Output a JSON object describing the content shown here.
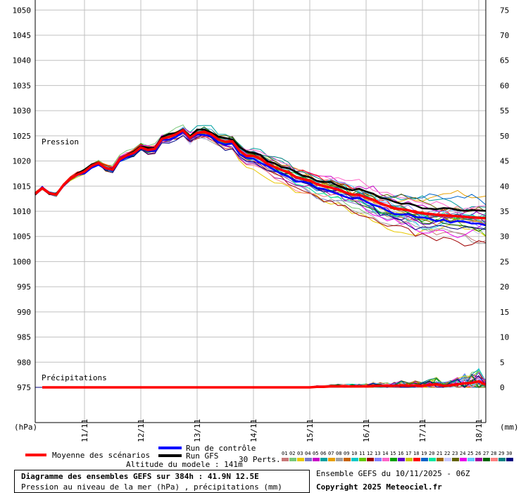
{
  "chart_data": {
    "type": "line",
    "title": "Diagramme des ensembles GEFS sur 384h : 41.9N 12.5E",
    "subtitle": "Pression au niveau de la mer (hPa) , précipitations (mm)",
    "left_axis": {
      "unit": "(hPa)",
      "ticks": [
        1050,
        1045,
        1040,
        1035,
        1030,
        1025,
        1020,
        1015,
        1010,
        1005,
        1000,
        995,
        990,
        985,
        980,
        975
      ],
      "range": [
        968,
        1052
      ]
    },
    "right_axis": {
      "unit": "(mm)",
      "ticks": [
        75,
        70,
        65,
        60,
        55,
        50,
        45,
        40,
        35,
        30,
        25,
        20,
        15,
        10,
        5,
        0
      ]
    },
    "x_ticks": [
      "11/11",
      "12/11",
      "13/11",
      "14/11",
      "15/11",
      "16/11",
      "17/11",
      "18/11"
    ],
    "x_range_hours": [
      0,
      384
    ],
    "x_tick_hours": [
      42,
      90,
      138,
      186,
      234,
      282,
      330,
      378
    ],
    "label_pressure": "Pression",
    "label_precip": "Précipitations",
    "pressure_mean": {
      "name": "Moyenne des scénarios",
      "x_hours": [
        0,
        6,
        12,
        18,
        24,
        30,
        36,
        42,
        48,
        54,
        60,
        66,
        72,
        78,
        84,
        90,
        96,
        102,
        108,
        114,
        120,
        126,
        132,
        138,
        144,
        150,
        156,
        162,
        168,
        174,
        180,
        186,
        192,
        198,
        204,
        210,
        216,
        222,
        228,
        234,
        240,
        246,
        252,
        258,
        264,
        270,
        276,
        282,
        288,
        294,
        300,
        306,
        312,
        318,
        324,
        330,
        336,
        342,
        348,
        354,
        360,
        366,
        372,
        378,
        384
      ],
      "values": [
        1013.5,
        1014.6,
        1013.6,
        1013.3,
        1015.2,
        1016.5,
        1017.3,
        1017.9,
        1019.0,
        1019.6,
        1018.6,
        1018.3,
        1020.3,
        1021.1,
        1021.6,
        1022.7,
        1022.2,
        1022.4,
        1024.4,
        1024.8,
        1025.3,
        1026.1,
        1024.6,
        1025.6,
        1025.8,
        1025.3,
        1024.3,
        1023.8,
        1023.9,
        1022.1,
        1021.0,
        1021.0,
        1020.4,
        1019.4,
        1018.8,
        1018.2,
        1017.7,
        1016.8,
        1016.4,
        1016.1,
        1015.4,
        1015.0,
        1014.7,
        1014.3,
        1013.8,
        1013.3,
        1013.3,
        1012.7,
        1012.3,
        1011.6,
        1011.1,
        1010.6,
        1010.4,
        1010.2,
        1009.8,
        1009.6,
        1009.5,
        1009.3,
        1009.2,
        1009.1,
        1009.0,
        1008.9,
        1008.8,
        1008.7,
        1008.6
      ]
    },
    "precip_mean": {
      "name": "Moyenne des scénarios",
      "values": [
        0,
        0,
        0,
        0,
        0,
        0,
        0,
        0,
        0,
        0,
        0,
        0,
        0,
        0,
        0,
        0,
        0,
        0,
        0,
        0,
        0,
        0,
        0,
        0,
        0,
        0,
        0,
        0,
        0,
        0,
        0,
        0,
        0,
        0,
        0,
        0,
        0,
        0,
        0,
        0,
        0.1,
        0.1,
        0.2,
        0.2,
        0.2,
        0.2,
        0.2,
        0.2,
        0.3,
        0.3,
        0.3,
        0.3,
        0.4,
        0.3,
        0.4,
        0.3,
        0.5,
        0.6,
        0.3,
        0.4,
        0.6,
        0.8,
        0.9,
        1.2,
        0.5
      ]
    },
    "control_run": {
      "name": "Run de contrôle",
      "color": "#0000ff"
    },
    "gfs_run": {
      "name": "Run GFS",
      "color": "#000000"
    },
    "perturbations_label": "30 Perts.",
    "perturbation_ids": [
      "01",
      "02",
      "03",
      "04",
      "05",
      "06",
      "07",
      "08",
      "09",
      "10",
      "11",
      "12",
      "13",
      "14",
      "15",
      "16",
      "17",
      "18",
      "19",
      "20",
      "21",
      "22",
      "23",
      "24",
      "25",
      "26",
      "27",
      "28",
      "29",
      "30"
    ],
    "perturbation_colors": [
      "#c87878",
      "#78c878",
      "#e8c800",
      "#7878c8",
      "#c800c8",
      "#00a0a0",
      "#e8a000",
      "#a0a0a0",
      "#c86400",
      "#00c8c8",
      "#64c800",
      "#a00000",
      "#8080ff",
      "#ff64c8",
      "#00a000",
      "#6400c8",
      "#c8c800",
      "#ff0000",
      "#0064c8",
      "#00e8a0",
      "#a06400",
      "#c8c8ff",
      "#646400",
      "#e800e8",
      "#64c8ff",
      "#a000a0",
      "#006400",
      "#ff8080",
      "#008080",
      "#000080"
    ]
  },
  "footer": {
    "altitude": "Altitude du modele : 141m",
    "ensemble": "Ensemble GEFS du 10/11/2025 - 06Z",
    "copyright": "Copyright 2025 Meteociel.fr"
  },
  "colors": {
    "grid": "#c0c0c0",
    "mean": "#ff0000"
  }
}
